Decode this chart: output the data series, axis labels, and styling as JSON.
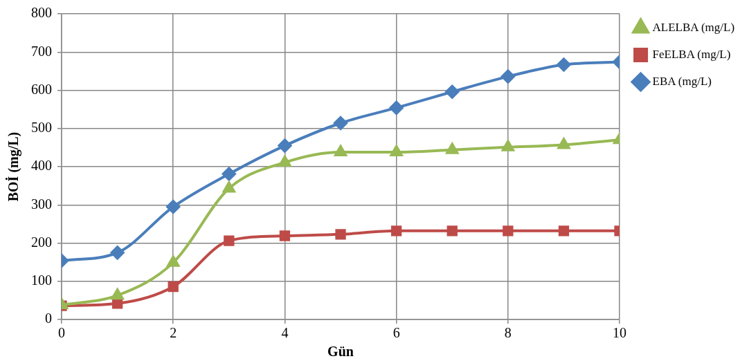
{
  "chart_data": {
    "type": "line",
    "xlabel": "Gün",
    "ylabel": "BOİ (mg/L)",
    "x": [
      0,
      1,
      2,
      3,
      4,
      5,
      6,
      7,
      8,
      9,
      10
    ],
    "series": [
      {
        "name": "EBA (mg/L)",
        "color": "#4a7ebb",
        "marker": "diamond",
        "values": [
          154,
          175,
          295,
          381,
          455,
          514,
          554,
          596,
          636,
          667,
          674
        ]
      },
      {
        "name": "FeELBA (mg/L)",
        "color": "#be4b48",
        "marker": "square",
        "values": [
          36,
          42,
          86,
          206,
          219,
          223,
          232,
          232,
          232,
          232,
          232
        ]
      },
      {
        "name": "ALELBA (mg/L)",
        "color": "#98b954",
        "marker": "triangle",
        "values": [
          38,
          63,
          149,
          343,
          411,
          438,
          438,
          444,
          451,
          457,
          470
        ]
      }
    ],
    "xlim": [
      0,
      10
    ],
    "xticks": [
      0,
      2,
      4,
      6,
      8,
      10
    ],
    "ylim": [
      0,
      800
    ],
    "yticks": [
      0,
      100,
      200,
      300,
      400,
      500,
      600,
      700,
      800
    ],
    "grid": true,
    "legend": "right"
  }
}
